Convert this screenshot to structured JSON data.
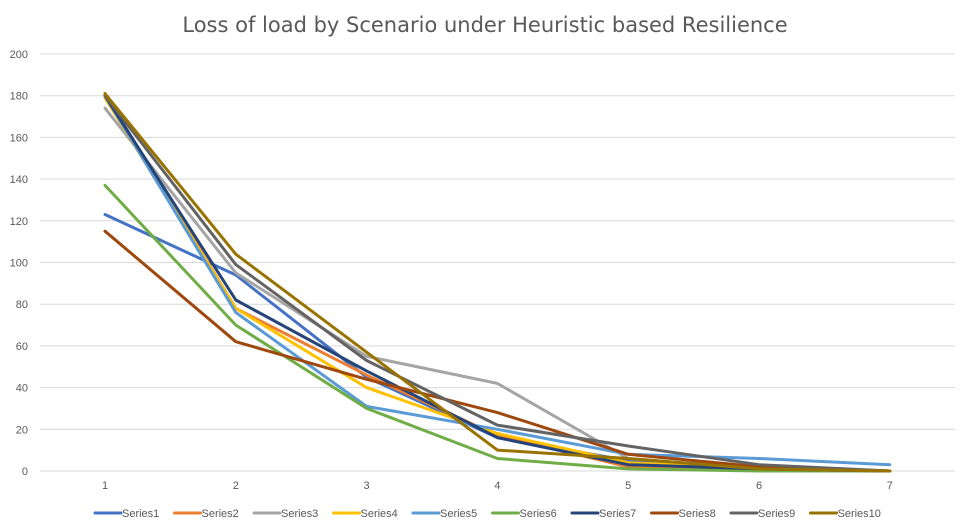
{
  "chart_data": {
    "type": "line",
    "title": "Loss of load by Scenario under Heuristic based Resilience",
    "xlabel": "",
    "ylabel": "",
    "x": [
      1,
      2,
      3,
      4,
      5,
      6,
      7
    ],
    "ylim": [
      0,
      200
    ],
    "yticks": [
      0,
      20,
      40,
      60,
      80,
      100,
      120,
      140,
      160,
      180,
      200
    ],
    "grid": true,
    "legend_position": "bottom",
    "series": [
      {
        "name": "Series1",
        "color": "#4472c4",
        "values": [
          123,
          94,
          45,
          16,
          5,
          2,
          0
        ]
      },
      {
        "name": "Series2",
        "color": "#ed7d31",
        "values": [
          181,
          78,
          46,
          17,
          2,
          1,
          0
        ]
      },
      {
        "name": "Series3",
        "color": "#a5a5a5",
        "values": [
          174,
          95,
          55,
          42,
          6,
          1,
          0
        ]
      },
      {
        "name": "Series4",
        "color": "#ffc000",
        "values": [
          179,
          78,
          40,
          18,
          4,
          1,
          0
        ]
      },
      {
        "name": "Series5",
        "color": "#5b9bd5",
        "values": [
          180,
          76,
          31,
          20,
          8,
          6,
          3
        ]
      },
      {
        "name": "Series6",
        "color": "#70ad47",
        "values": [
          137,
          70,
          30,
          6,
          1,
          0,
          0
        ]
      },
      {
        "name": "Series7",
        "color": "#264478",
        "values": [
          180,
          82,
          48,
          16,
          3,
          1,
          0
        ]
      },
      {
        "name": "Series8",
        "color": "#9e480e",
        "values": [
          115,
          62,
          44,
          28,
          8,
          2,
          0
        ]
      },
      {
        "name": "Series9",
        "color": "#636363",
        "values": [
          180,
          99,
          53,
          22,
          12,
          3,
          0
        ]
      },
      {
        "name": "Series10",
        "color": "#997300",
        "values": [
          181,
          104,
          57,
          10,
          6,
          1,
          0
        ]
      }
    ]
  }
}
